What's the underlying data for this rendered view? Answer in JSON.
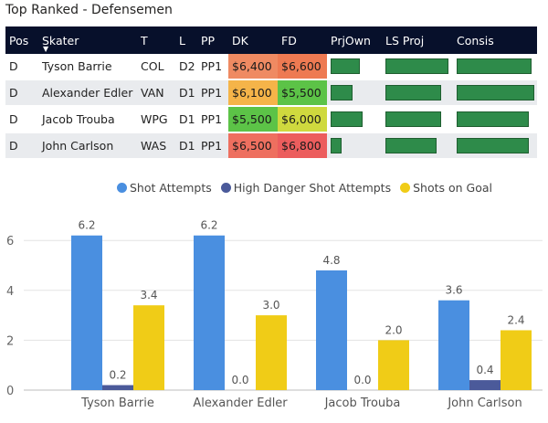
{
  "table": {
    "title": "Top Ranked - Defensemen",
    "columns": [
      "Pos",
      "Skater",
      "T",
      "L",
      "PP",
      "DK",
      "FD",
      "PrjOwn",
      "LS Proj",
      "Consis"
    ],
    "sort_indicator": "▼",
    "rows": [
      {
        "pos": "D",
        "skater": "Tyson Barrie",
        "team": "COL",
        "line": "D2",
        "pp": "PP1",
        "dk": "$6,400",
        "fd": "$6,600",
        "dk_color": "#ef8a62",
        "fd_color": "#ee7a52",
        "prjown": 0.57,
        "lsproj": 0.93,
        "consis": 0.93
      },
      {
        "pos": "D",
        "skater": "Alexander Edler",
        "team": "VAN",
        "line": "D1",
        "pp": "PP1",
        "dk": "$6,100",
        "fd": "$5,500",
        "dk_color": "#f5b449",
        "fd_color": "#5cc347",
        "prjown": 0.42,
        "lsproj": 0.82,
        "consis": 0.97
      },
      {
        "pos": "D",
        "skater": "Jacob Trouba",
        "team": "WPG",
        "line": "D1",
        "pp": "PP1",
        "dk": "$5,500",
        "fd": "$6,000",
        "dk_color": "#5cc347",
        "fd_color": "#cfd93e",
        "prjown": 0.63,
        "lsproj": 0.82,
        "consis": 0.9
      },
      {
        "pos": "D",
        "skater": "John Carlson",
        "team": "WAS",
        "line": "D1",
        "pp": "PP1",
        "dk": "$6,500",
        "fd": "$6,800",
        "dk_color": "#ee6f5f",
        "fd_color": "#ec5d5d",
        "prjown": 0.22,
        "lsproj": 0.76,
        "consis": 0.9
      }
    ]
  },
  "chart_data": {
    "type": "bar",
    "categories": [
      "Tyson Barrie",
      "Alexander Edler",
      "Jacob Trouba",
      "John Carlson"
    ],
    "series": [
      {
        "name": "Shot Attempts",
        "color": "#4a8fe0",
        "values": [
          6.2,
          6.2,
          4.8,
          3.6
        ],
        "labels": [
          "6.2",
          "6.2",
          "4.8",
          "3.6"
        ]
      },
      {
        "name": "High Danger Shot Attempts",
        "color": "#4b5a9a",
        "values": [
          0.2,
          0.0,
          0.0,
          0.4
        ],
        "labels": [
          "0.2",
          "0.0",
          "0.0",
          "0.4"
        ]
      },
      {
        "name": "Shots on Goal",
        "color": "#f0cc17",
        "values": [
          3.4,
          3.0,
          2.0,
          2.4
        ],
        "labels": [
          "3.4",
          "3.0",
          "2.0",
          "2.4"
        ]
      }
    ],
    "yticks": [
      0,
      2,
      4,
      6
    ],
    "ytick_labels": [
      "0",
      "2",
      "4",
      "6"
    ],
    "ylim": [
      0,
      7
    ],
    "legend_position": "top",
    "title": "",
    "xlabel": "",
    "ylabel": ""
  }
}
